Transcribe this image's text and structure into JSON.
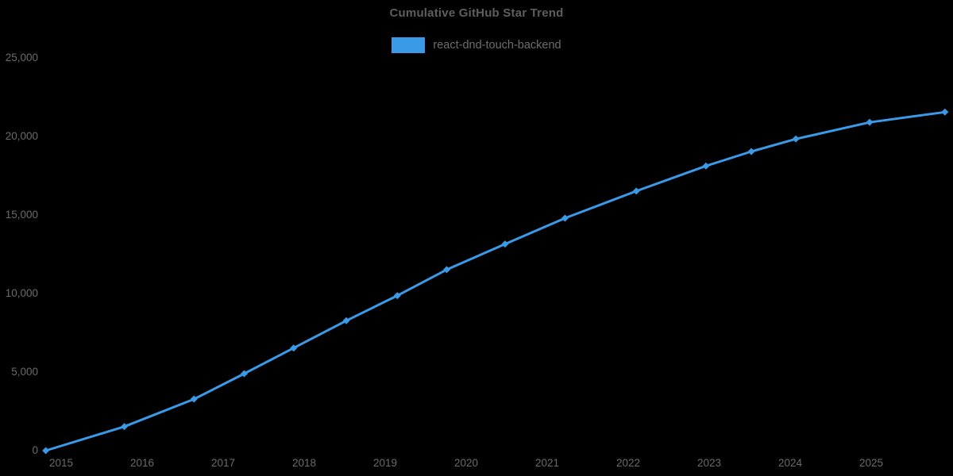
{
  "chart": {
    "title": "Cumulative GitHub Star Trend",
    "series_name": "react-dnd-touch-backend",
    "accent_color": "#3B9AE8",
    "axis_text_color": "#6b6b6b",
    "background_color": "#000000"
  },
  "chart_data": {
    "type": "line",
    "title": "Cumulative GitHub Star Trend",
    "xlabel": "",
    "ylabel": "",
    "legend_position": "top-center",
    "grid": false,
    "marker": "diamond",
    "background": "#000000",
    "xlim": [
      2014.25,
      2026.0
    ],
    "ylim": [
      0,
      25000
    ],
    "x_ticks": [
      2015,
      2016,
      2017,
      2018,
      2019,
      2020,
      2021,
      2022,
      2023,
      2024,
      2025
    ],
    "y_ticks": [
      0,
      5000,
      10000,
      15000,
      20000,
      25000
    ],
    "y_tick_labels": [
      "0",
      "5,000",
      "10,000",
      "15,000",
      "20,000",
      "25,000"
    ],
    "series": [
      {
        "name": "react-dnd-touch-backend",
        "color": "#3B9AE8",
        "x": [
          2014.81,
          2015.78,
          2016.64,
          2017.26,
          2017.87,
          2018.52,
          2019.15,
          2019.76,
          2020.48,
          2021.22,
          2022.1,
          2022.96,
          2023.52,
          2024.07,
          2024.98,
          2025.91
        ],
        "values": [
          0,
          1530,
          3280,
          4900,
          6530,
          8270,
          9870,
          11520,
          13150,
          14800,
          16520,
          18120,
          19040,
          19840,
          20900,
          21550
        ]
      }
    ]
  }
}
